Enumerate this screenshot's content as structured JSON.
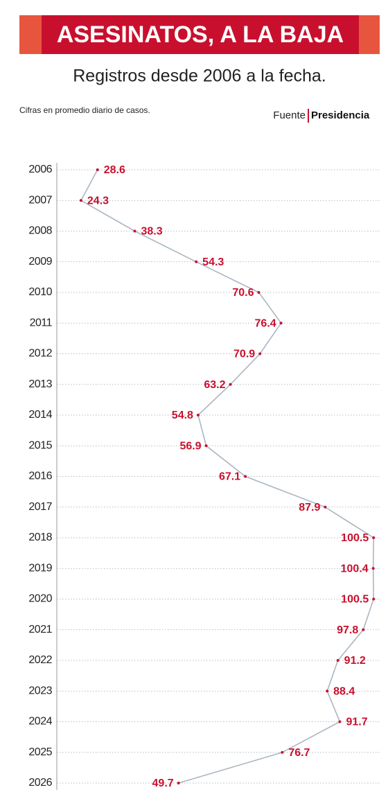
{
  "chart_data": {
    "type": "line",
    "title": "ASESINATOS, A LA BAJA",
    "subtitle": "Registros desde 2006 a la fecha.",
    "note": "Cifras en promedio diario de casos.",
    "source_label": "Fuente",
    "source": "Presidencia",
    "categories": [
      "2006",
      "2007",
      "2008",
      "2009",
      "2010",
      "2011",
      "2012",
      "2013",
      "2014",
      "2015",
      "2016",
      "2017",
      "2018",
      "2019",
      "2020",
      "2021",
      "2022",
      "2023",
      "2024",
      "2025",
      "2026"
    ],
    "series": [
      {
        "color": "#a9b6c2",
        "point_color": "#c8102e",
        "values": [
          28.6,
          24.3,
          38.3,
          54.3,
          70.6,
          76.4,
          70.9,
          63.2,
          54.8,
          56.9,
          67.1,
          87.9,
          100.5,
          100.4,
          100.5,
          97.8,
          91.2,
          88.4,
          91.7,
          76.7,
          49.7
        ]
      }
    ],
    "xlim": [
      18,
      101
    ],
    "grid": true
  }
}
